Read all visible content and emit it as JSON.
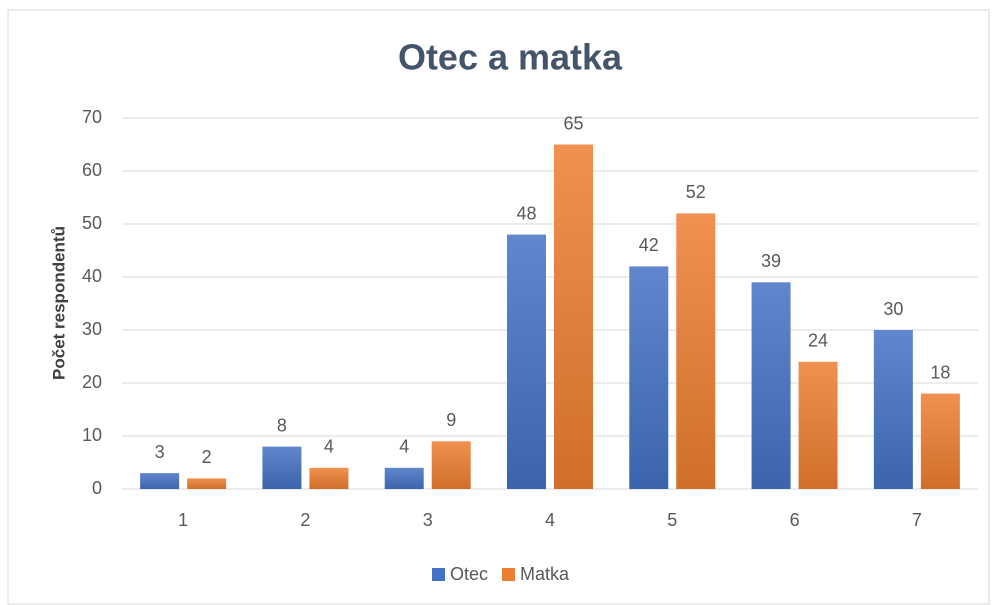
{
  "chart_data": {
    "type": "bar",
    "title": "Otec a matka",
    "y_label": "Počet respondentů",
    "categories": [
      "1",
      "2",
      "3",
      "4",
      "5",
      "6",
      "7"
    ],
    "series": [
      {
        "name": "Otec",
        "color": "#4472c4",
        "values": [
          3,
          8,
          4,
          48,
          42,
          39,
          30
        ]
      },
      {
        "name": "Matka",
        "color": "#ed7d31",
        "values": [
          2,
          4,
          9,
          65,
          52,
          24,
          18
        ]
      }
    ],
    "ylim": [
      0,
      70
    ],
    "yticks": [
      0,
      10,
      20,
      30,
      40,
      50,
      60,
      70
    ],
    "grid": true,
    "legend": "bottom"
  }
}
